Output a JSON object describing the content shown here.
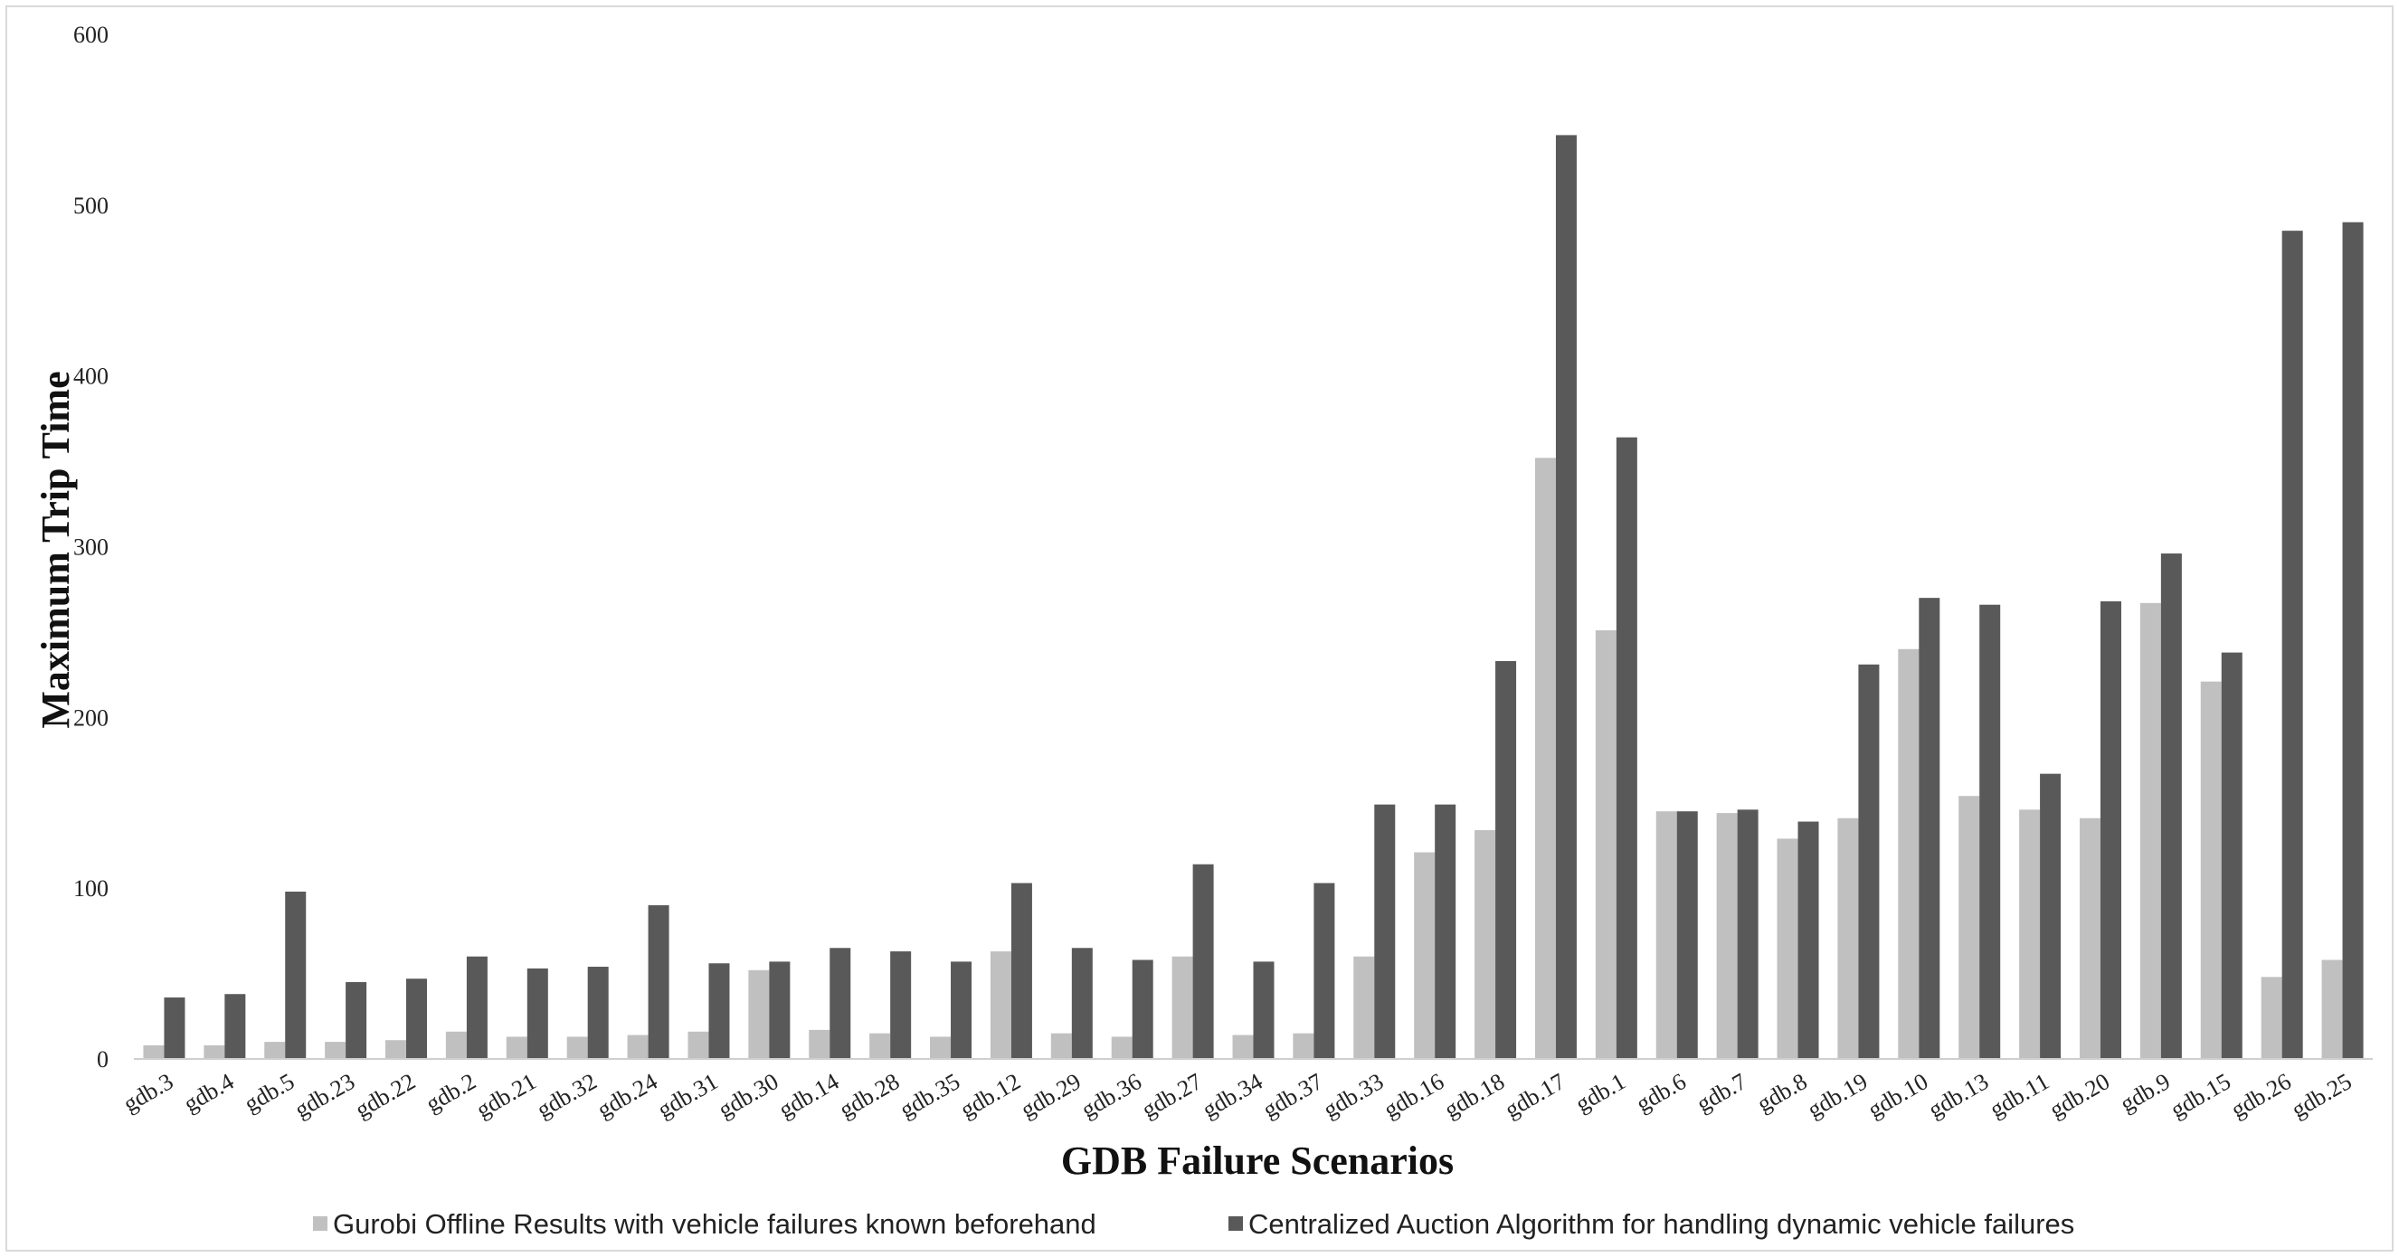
{
  "chart_data": {
    "type": "bar",
    "title": "",
    "xlabel": "GDB Failure Scenarios",
    "ylabel": "Maximum Trip Time",
    "ylim": [
      0,
      600
    ],
    "yticks": [
      0,
      100,
      200,
      300,
      400,
      500,
      600
    ],
    "grid": false,
    "legend_position": "bottom",
    "categories": [
      "gdb.3",
      "gdb.4",
      "gdb.5",
      "gdb.23",
      "gdb.22",
      "gdb.2",
      "gdb.21",
      "gdb.32",
      "gdb.24",
      "gdb.31",
      "gdb.30",
      "gdb.14",
      "gdb.28",
      "gdb.35",
      "gdb.12",
      "gdb.29",
      "gdb.36",
      "gdb.27",
      "gdb.34",
      "gdb.37",
      "gdb.33",
      "gdb.16",
      "gdb.18",
      "gdb.17",
      "gdb.1",
      "gdb.6",
      "gdb.7",
      "gdb.8",
      "gdb.19",
      "gdb.10",
      "gdb.13",
      "gdb.11",
      "gdb.20",
      "gdb.9",
      "gdb.15",
      "gdb.26",
      "gdb.25"
    ],
    "series": [
      {
        "name": "Gurobi Offline Results with vehicle failures known beforehand",
        "color": "#c0c0c0",
        "values": [
          8,
          8,
          10,
          10,
          11,
          16,
          13,
          13,
          14,
          16,
          52,
          17,
          15,
          13,
          63,
          15,
          13,
          60,
          14,
          15,
          60,
          121,
          134,
          352,
          251,
          145,
          144,
          129,
          141,
          240,
          154,
          146,
          141,
          267,
          221,
          48,
          58
        ]
      },
      {
        "name": "Centralized Auction Algorithm for handling dynamic vehicle failures",
        "color": "#595959",
        "values": [
          36,
          38,
          98,
          45,
          47,
          60,
          53,
          54,
          90,
          56,
          57,
          65,
          63,
          57,
          103,
          65,
          58,
          114,
          57,
          103,
          149,
          149,
          233,
          541,
          364,
          145,
          146,
          139,
          231,
          270,
          266,
          167,
          268,
          296,
          238,
          485,
          490
        ]
      }
    ]
  }
}
